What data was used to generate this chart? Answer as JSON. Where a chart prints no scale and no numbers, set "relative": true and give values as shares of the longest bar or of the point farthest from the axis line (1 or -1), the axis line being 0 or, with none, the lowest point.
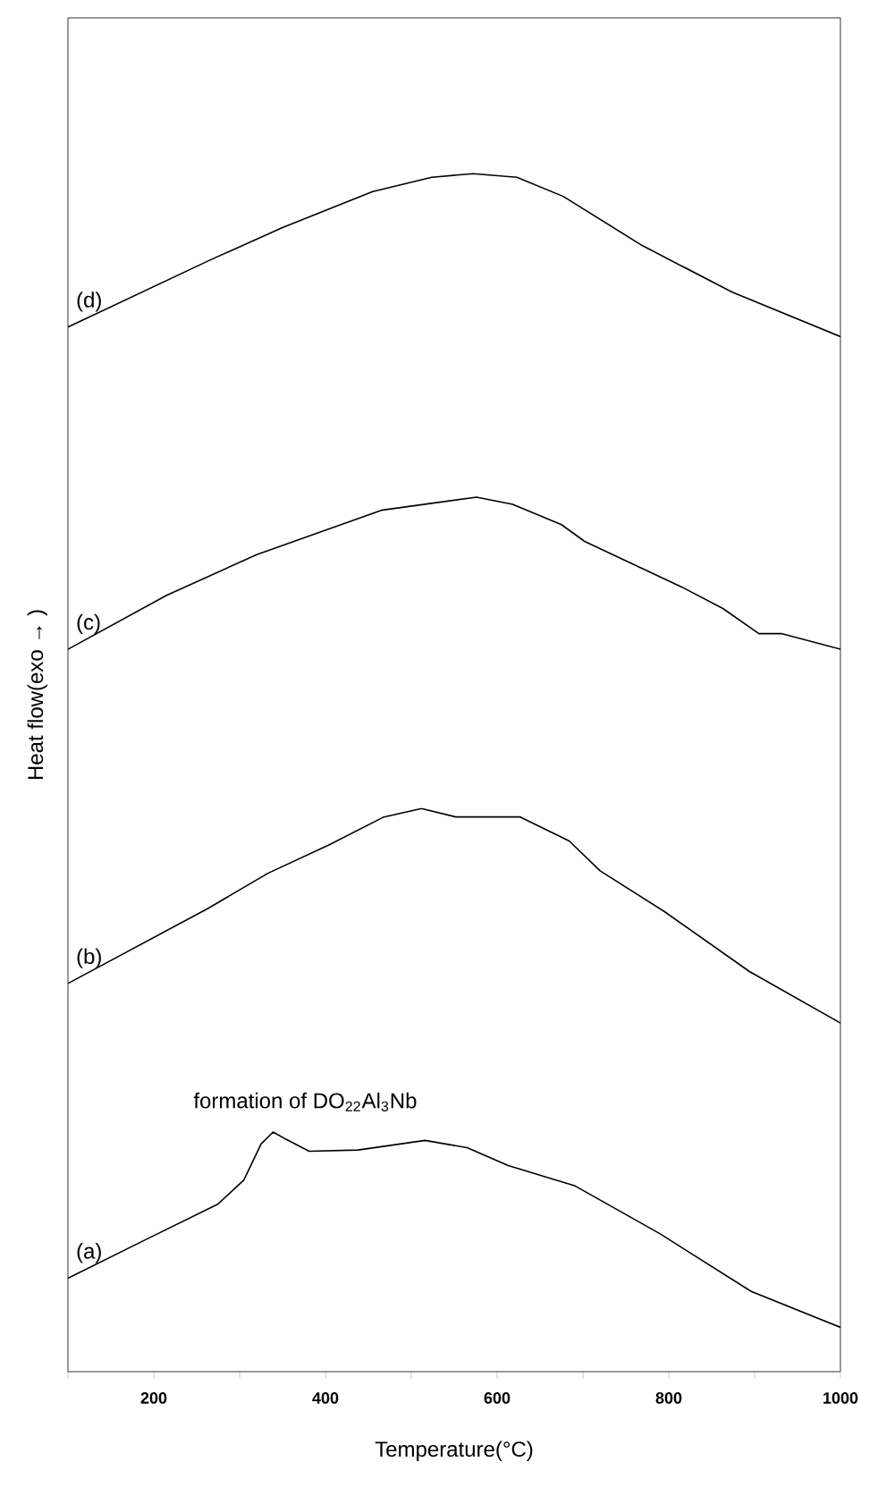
{
  "chart_data": {
    "type": "line",
    "relative": true,
    "xlabel": "Temperature(°C)",
    "ylabel": "Heat flow(exo → )",
    "xlim": [
      100,
      1000
    ],
    "xticks": [
      {
        "value": 100,
        "label": null
      },
      200,
      {
        "value": 300,
        "label": null
      },
      400,
      {
        "value": 500,
        "label": null
      },
      600,
      {
        "value": 700,
        "label": null
      },
      800,
      {
        "value": 900,
        "label": null
      },
      1000
    ],
    "marker": "none",
    "line_style": "solid",
    "annotations": [
      {
        "text": "formation of DO$_{22}$Al$_{3}$Nb",
        "x": 339,
        "y": 0.2
      }
    ],
    "series": [
      {
        "name": "(a)",
        "color": "#000000",
        "x": [
          100,
          190,
          275,
          305,
          325,
          339,
          354,
          381,
          438,
          516,
          565,
          613,
          691,
          790,
          896,
          1000
        ],
        "values": [
          0.078,
          0.11,
          0.14,
          0.16,
          0.19,
          0.2,
          0.194,
          0.184,
          0.185,
          0.193,
          0.187,
          0.172,
          0.155,
          0.115,
          0.067,
          0.037
        ]
      },
      {
        "name": "(b)",
        "color": "#000000",
        "x": [
          100,
          264,
          333,
          405,
          468,
          512,
          552,
          627,
          684,
          720,
          795,
          894,
          1000
        ],
        "values": [
          0.324,
          0.387,
          0.416,
          0.44,
          0.463,
          0.47,
          0.463,
          0.463,
          0.443,
          0.418,
          0.384,
          0.334,
          0.291
        ]
      },
      {
        "name": "(c)",
        "color": "#000000",
        "x": [
          100,
          215,
          320,
          465,
          576,
          618,
          675,
          702,
          815,
          863,
          905,
          932,
          1000
        ],
        "values": [
          0.603,
          0.648,
          0.682,
          0.719,
          0.73,
          0.724,
          0.707,
          0.693,
          0.655,
          0.637,
          0.616,
          0.616,
          0.603
        ]
      },
      {
        "name": "(d)",
        "color": "#000000",
        "x": [
          100,
          266,
          350,
          455,
          524,
          572,
          623,
          677,
          769,
          874,
          1000
        ],
        "values": [
          0.872,
          0.928,
          0.955,
          0.985,
          0.997,
          1.0,
          0.997,
          0.981,
          0.94,
          0.901,
          0.864
        ]
      }
    ]
  }
}
